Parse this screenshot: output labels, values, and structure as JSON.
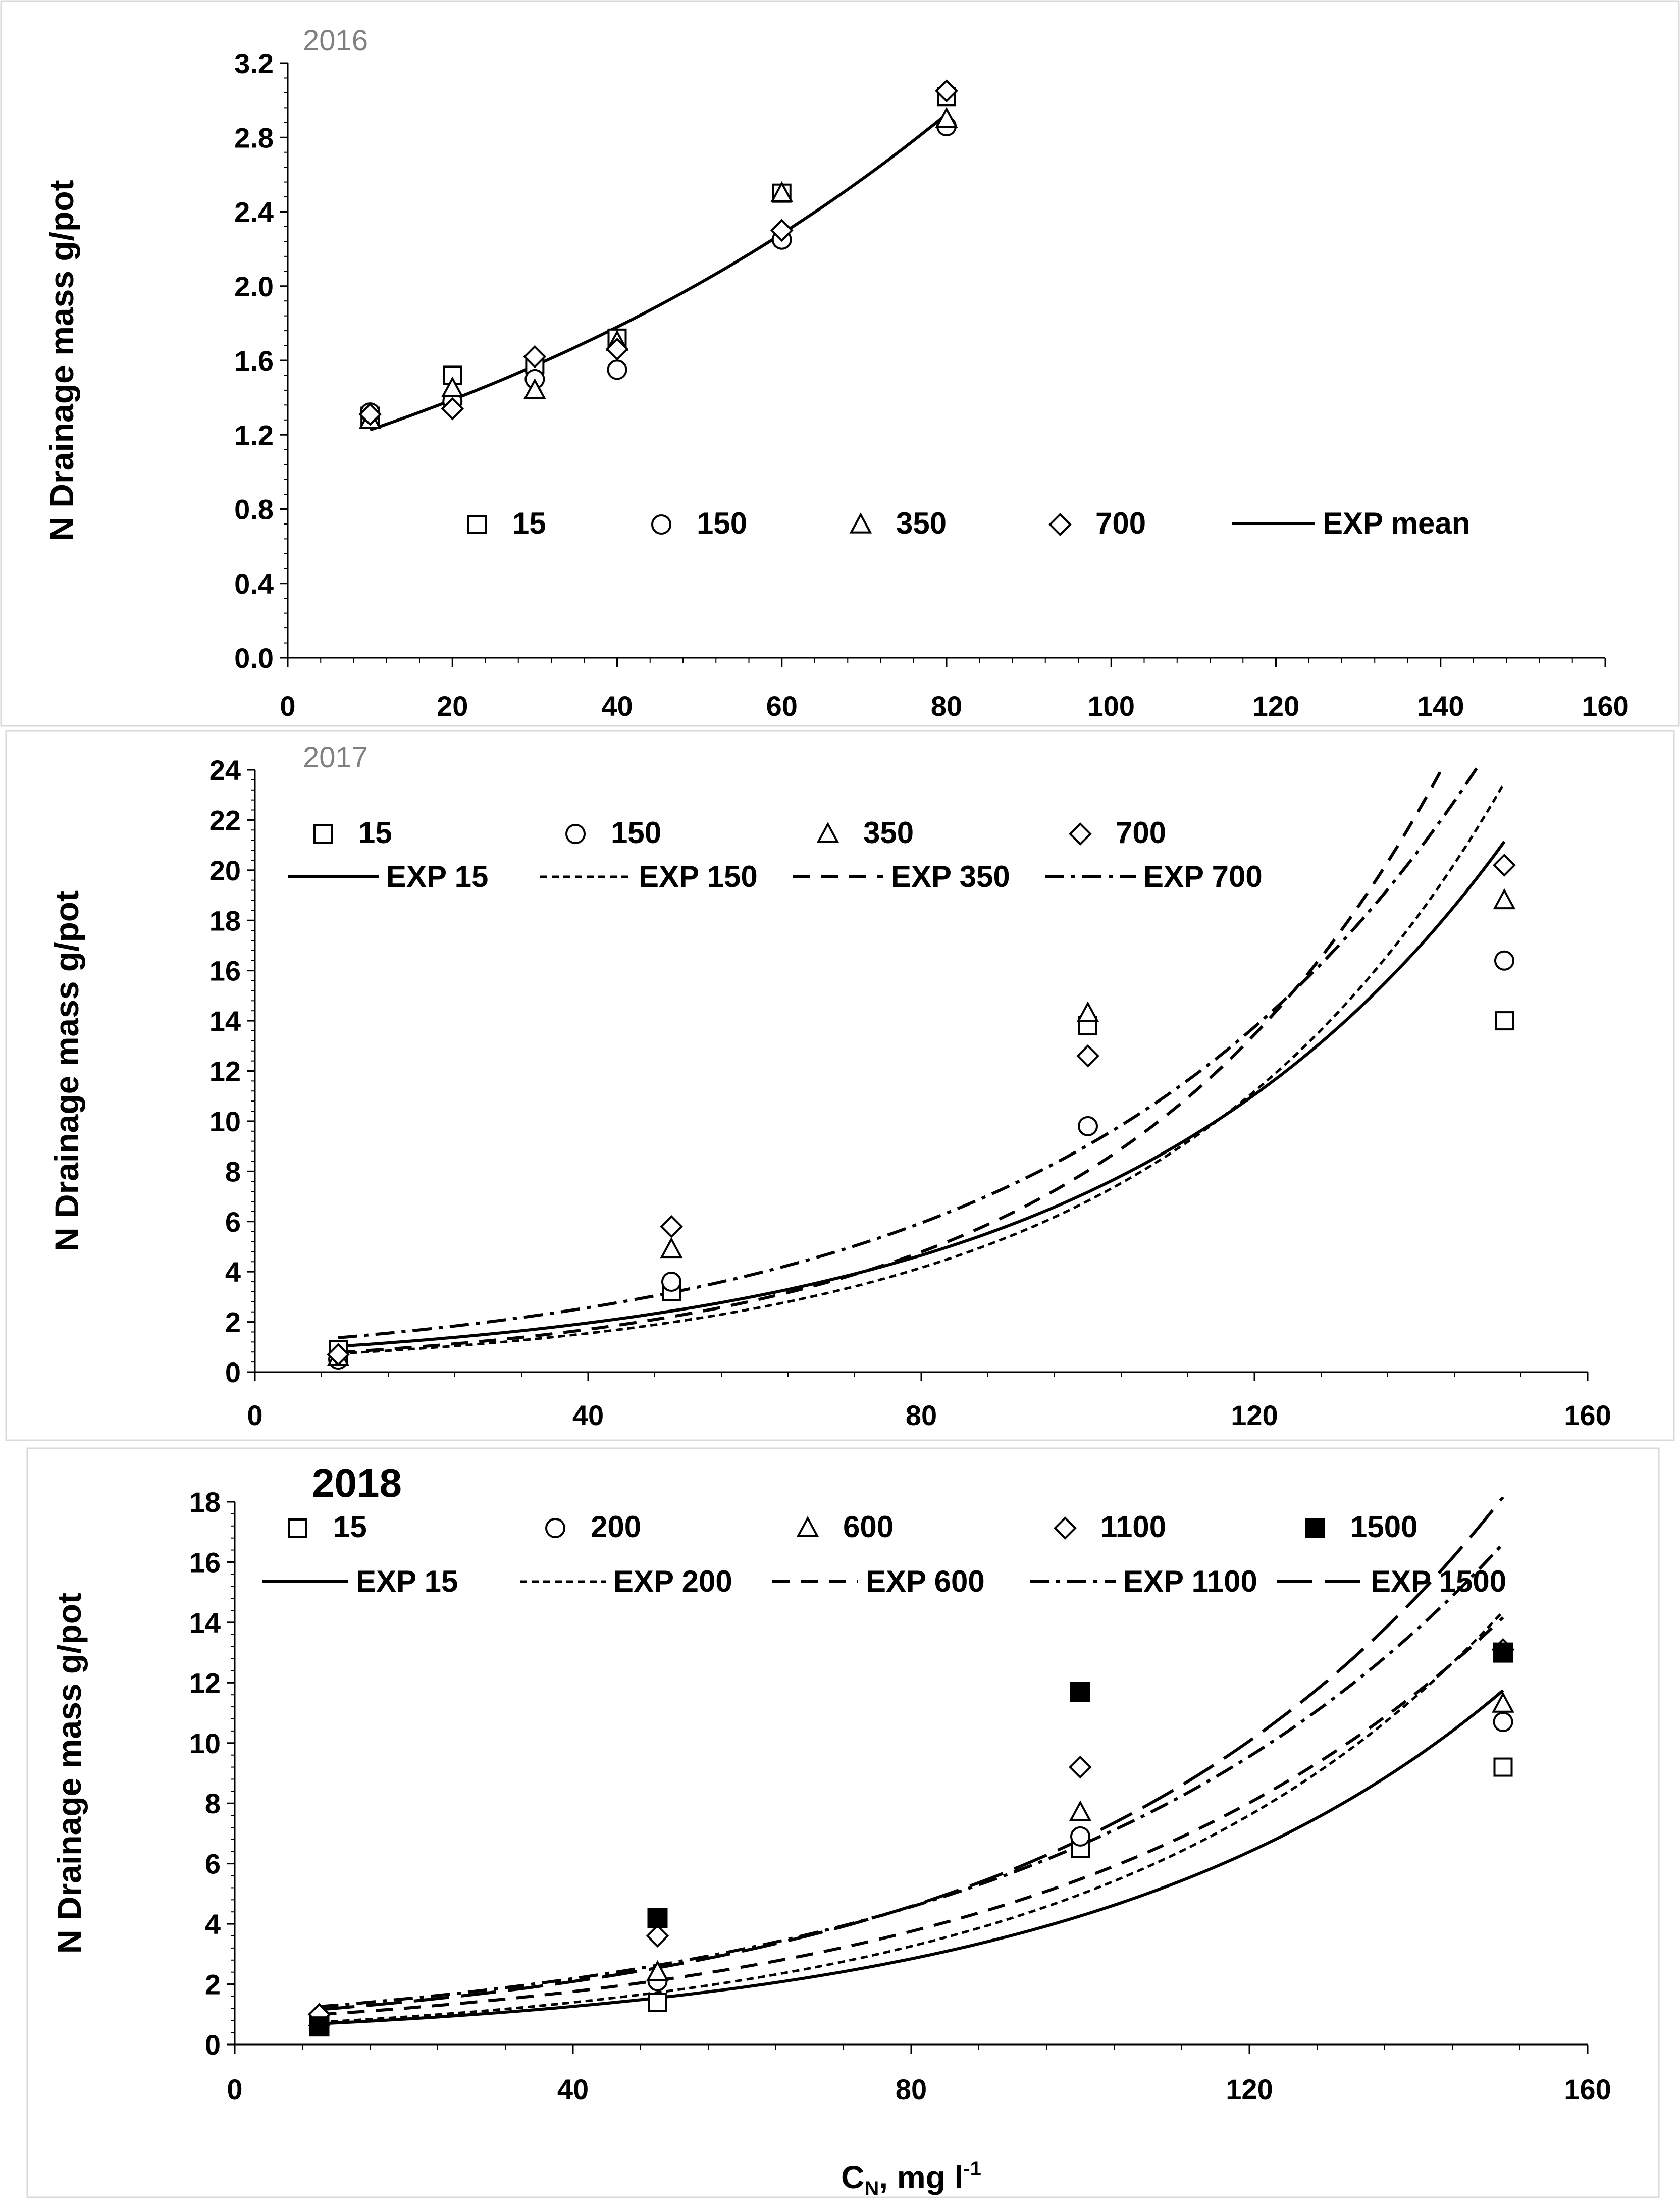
{
  "chart_data": [
    {
      "type": "scatter",
      "year_label": "2016",
      "ylabel": "N Drainage mass g/pot",
      "xlabel": "",
      "xlim": [
        0,
        160
      ],
      "ylim": [
        0,
        3.2
      ],
      "x_ticks": [
        "0",
        "20",
        "40",
        "60",
        "80",
        "100",
        "120",
        "140",
        "160"
      ],
      "y_ticks": [
        "0.0",
        "0.4",
        "0.8",
        "1.2",
        "1.6",
        "2.0",
        "2.4",
        "2.8",
        "3.2"
      ],
      "series": [
        {
          "name": "15",
          "marker": "square",
          "x": [
            10,
            20,
            30,
            40,
            60,
            80
          ],
          "y": [
            1.3,
            1.52,
            1.58,
            1.72,
            2.5,
            3.02
          ]
        },
        {
          "name": "150",
          "marker": "circle",
          "x": [
            10,
            20,
            30,
            40,
            60,
            80
          ],
          "y": [
            1.32,
            1.38,
            1.5,
            1.55,
            2.25,
            2.86
          ]
        },
        {
          "name": "350",
          "marker": "triangle",
          "x": [
            10,
            20,
            30,
            40,
            60,
            80
          ],
          "y": [
            1.28,
            1.45,
            1.44,
            1.7,
            2.5,
            2.9
          ]
        },
        {
          "name": "700",
          "marker": "diamond",
          "x": [
            10,
            20,
            30,
            40,
            60,
            80
          ],
          "y": [
            1.31,
            1.34,
            1.62,
            1.66,
            2.3,
            3.05
          ]
        }
      ],
      "fits": [
        {
          "name": "EXP mean",
          "style": "solid",
          "a": 1.083,
          "b": 0.01242,
          "x_range": [
            10,
            80
          ]
        }
      ]
    },
    {
      "type": "scatter",
      "year_label": "2017",
      "ylabel": "N Drainage mass g/pot",
      "xlabel": "",
      "xlim": [
        0,
        160
      ],
      "ylim": [
        0,
        24
      ],
      "x_ticks": [
        "0",
        "40",
        "80",
        "120",
        "160"
      ],
      "y_ticks": [
        "0",
        "2",
        "4",
        "6",
        "8",
        "10",
        "12",
        "14",
        "16",
        "18",
        "20",
        "22",
        "24"
      ],
      "series": [
        {
          "name": "15",
          "marker": "square",
          "x": [
            10,
            50,
            100,
            150
          ],
          "y": [
            0.9,
            3.2,
            13.8,
            14.0
          ]
        },
        {
          "name": "150",
          "marker": "circle",
          "x": [
            10,
            50,
            100,
            150
          ],
          "y": [
            0.5,
            3.6,
            9.8,
            16.4
          ]
        },
        {
          "name": "350",
          "marker": "triangle",
          "x": [
            10,
            50,
            100,
            150
          ],
          "y": [
            0.6,
            4.9,
            14.3,
            18.8
          ]
        },
        {
          "name": "700",
          "marker": "diamond",
          "x": [
            10,
            50,
            100,
            150
          ],
          "y": [
            0.7,
            5.8,
            12.6,
            20.2
          ]
        }
      ],
      "fits": [
        {
          "name": "EXP 15",
          "style": "solid",
          "a": 0.8254,
          "b": 0.02162,
          "x_range": [
            10,
            150
          ]
        },
        {
          "name": "EXP 150",
          "style": "dotted",
          "a": 0.5753,
          "b": 0.02473,
          "x_range": [
            10,
            150
          ]
        },
        {
          "name": "EXP 350",
          "style": "dashed",
          "a": 0.6068,
          "b": 0.02582,
          "x_range": [
            10,
            150
          ]
        },
        {
          "name": "EXP 700",
          "style": "dashdot",
          "a": 1.1106,
          "b": 0.02097,
          "x_range": [
            10,
            150
          ]
        }
      ]
    },
    {
      "type": "scatter",
      "year_label": "2018",
      "ylabel": "N Drainage mass g/pot",
      "xlabel": "C",
      "xlabel_sub": "N",
      "xlabel_rest": ", mg l",
      "xlabel_sup": "-1",
      "xlim": [
        0,
        160
      ],
      "ylim": [
        0,
        18
      ],
      "x_ticks": [
        "0",
        "40",
        "80",
        "120",
        "160"
      ],
      "y_ticks": [
        "0",
        "2",
        "4",
        "6",
        "8",
        "10",
        "12",
        "14",
        "16",
        "18"
      ],
      "series": [
        {
          "name": "15",
          "marker": "square",
          "x": [
            10,
            50,
            100,
            150
          ],
          "y": [
            0.7,
            1.4,
            6.5,
            9.2
          ]
        },
        {
          "name": "200",
          "marker": "circle",
          "x": [
            10,
            50,
            100,
            150
          ],
          "y": [
            0.8,
            2.1,
            6.9,
            10.7
          ]
        },
        {
          "name": "600",
          "marker": "triangle",
          "x": [
            10,
            50,
            100,
            150
          ],
          "y": [
            0.9,
            2.4,
            7.7,
            11.3
          ]
        },
        {
          "name": "1100",
          "marker": "diamond",
          "x": [
            10,
            50,
            100,
            150
          ],
          "y": [
            1.0,
            3.6,
            9.2,
            13.1
          ]
        },
        {
          "name": "1500",
          "marker": "filled-square",
          "x": [
            10,
            50,
            100,
            150
          ],
          "y": [
            0.6,
            4.2,
            11.7,
            13.0
          ]
        }
      ],
      "fits": [
        {
          "name": "EXP 15",
          "style": "solid",
          "a": 0.5615,
          "b": 0.02027,
          "x_range": [
            10,
            150
          ]
        },
        {
          "name": "EXP 200",
          "style": "dotted",
          "a": 0.5983,
          "b": 0.02119,
          "x_range": [
            10,
            150
          ]
        },
        {
          "name": "EXP 600",
          "style": "dashed",
          "a": 0.8219,
          "b": 0.01898,
          "x_range": [
            10,
            150
          ]
        },
        {
          "name": "EXP 1100",
          "style": "dashdot",
          "a": 1.0452,
          "b": 0.01844,
          "x_range": [
            10,
            150
          ]
        },
        {
          "name": "EXP 1500",
          "style": "longdash",
          "a": 0.9513,
          "b": 0.01966,
          "x_range": [
            10,
            150
          ]
        }
      ]
    }
  ]
}
